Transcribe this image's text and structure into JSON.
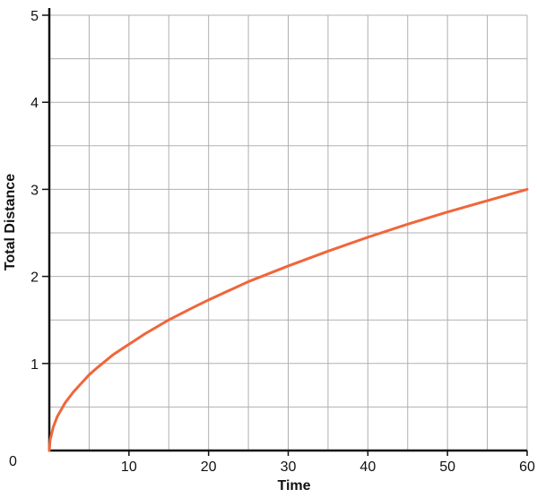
{
  "chart_data": {
    "type": "line",
    "title": "",
    "xlabel": "Time",
    "ylabel": "Total Distance",
    "xlim": [
      0,
      60
    ],
    "ylim": [
      0,
      5
    ],
    "grid": true,
    "x_ticks": [
      10,
      20,
      30,
      40,
      50,
      60
    ],
    "y_ticks": [
      1,
      2,
      3,
      4,
      5
    ],
    "origin_label": "0",
    "series": [
      {
        "color": "#f0663a",
        "points": [
          [
            0,
            0
          ],
          [
            0.1,
            0.12
          ],
          [
            0.5,
            0.27
          ],
          [
            1,
            0.39
          ],
          [
            2,
            0.55
          ],
          [
            3,
            0.67
          ],
          [
            4,
            0.77
          ],
          [
            5,
            0.87
          ],
          [
            6,
            0.95
          ],
          [
            8,
            1.1
          ],
          [
            10,
            1.22
          ],
          [
            12,
            1.34
          ],
          [
            15,
            1.5
          ],
          [
            18,
            1.64
          ],
          [
            20,
            1.73
          ],
          [
            25,
            1.94
          ],
          [
            30,
            2.12
          ],
          [
            35,
            2.29
          ],
          [
            40,
            2.45
          ],
          [
            45,
            2.6
          ],
          [
            50,
            2.74
          ],
          [
            55,
            2.87
          ],
          [
            60,
            3.0
          ]
        ]
      }
    ]
  }
}
